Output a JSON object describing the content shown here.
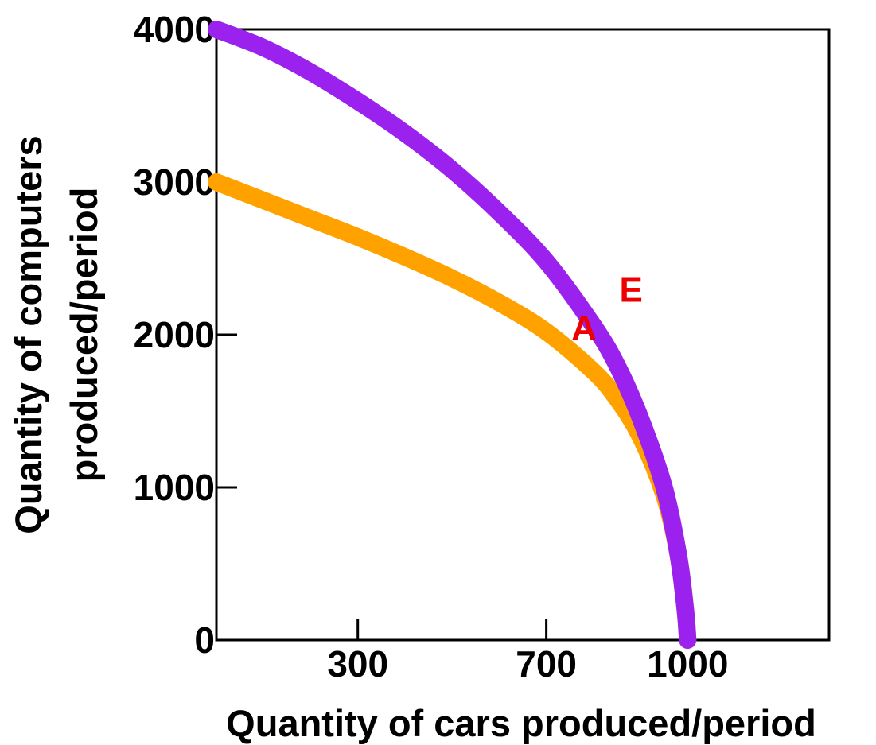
{
  "chart_data": {
    "type": "line",
    "title": "",
    "xlabel": "Quantity of cars produced/period",
    "ylabel_lines": [
      "Quantity of computers",
      "produced/period"
    ],
    "xlim": [
      0,
      1300
    ],
    "ylim": [
      0,
      4000
    ],
    "x_ticks": [
      300,
      700,
      1000
    ],
    "y_ticks": [
      0,
      1000,
      2000,
      3000,
      4000
    ],
    "grid": false,
    "series": [
      {
        "color": "#9b22ee",
        "points": [
          [
            0,
            4000
          ],
          [
            100,
            3880
          ],
          [
            200,
            3720
          ],
          [
            300,
            3530
          ],
          [
            400,
            3320
          ],
          [
            500,
            3080
          ],
          [
            600,
            2800
          ],
          [
            700,
            2480
          ],
          [
            800,
            2060
          ],
          [
            850,
            1800
          ],
          [
            900,
            1450
          ],
          [
            950,
            1000
          ],
          [
            980,
            560
          ],
          [
            995,
            200
          ],
          [
            1000,
            0
          ]
        ]
      },
      {
        "color": "#ffa200",
        "points": [
          [
            0,
            3000
          ],
          [
            100,
            2880
          ],
          [
            200,
            2760
          ],
          [
            300,
            2640
          ],
          [
            400,
            2510
          ],
          [
            500,
            2370
          ],
          [
            600,
            2210
          ],
          [
            700,
            2020
          ],
          [
            800,
            1760
          ],
          [
            850,
            1580
          ],
          [
            900,
            1330
          ],
          [
            950,
            950
          ],
          [
            980,
            560
          ],
          [
            995,
            200
          ],
          [
            1000,
            0
          ]
        ]
      }
    ],
    "annotations": [
      {
        "text": "A",
        "x": 780,
        "y": 2050,
        "color": "#ee0000"
      },
      {
        "text": "E",
        "x": 880,
        "y": 2300,
        "color": "#ee0000"
      }
    ]
  }
}
